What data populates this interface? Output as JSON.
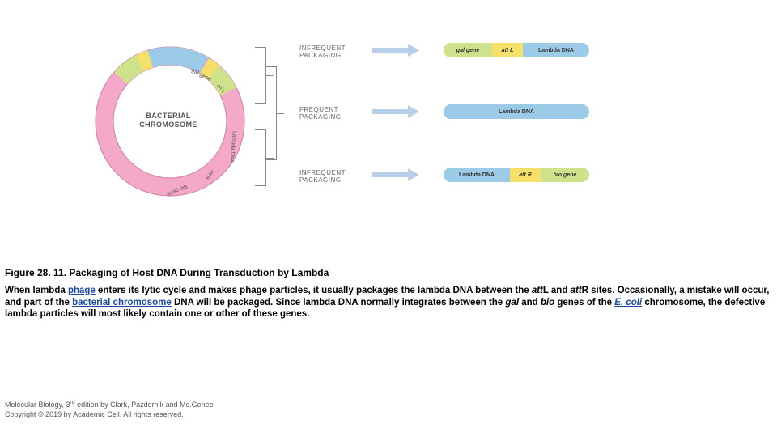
{
  "diagram": {
    "chromosome": {
      "label_line1": "BACTERIAL",
      "label_line2": "CHROMOSOME",
      "ring_outer_r": 92,
      "ring_inner_r": 70,
      "colors": {
        "bacterial": "#f4a9c9",
        "gal": "#cde28a",
        "att": "#f5e06a",
        "lambda": "#9bcbe6",
        "bio": "#cde28a",
        "outline": "#d389a8"
      },
      "arc_labels": {
        "gal": "gal gene",
        "attL": "att L",
        "lambda": "Lambda DNA",
        "attR": "att R",
        "bio": "bio gene"
      }
    },
    "packaging_labels": {
      "top": "INFREQUENT\nPACKAGING",
      "mid": "FREQUENT\nPACKAGING",
      "bot": "INFREQUENT\nPACKAGING"
    },
    "arrow_color": "#b7cfe8",
    "bars": {
      "top": [
        {
          "label": "gal gene",
          "w": 60,
          "color": "#cde28a",
          "ital": true
        },
        {
          "label": "att L",
          "w": 38,
          "color": "#f5e06a",
          "ital": true
        },
        {
          "label": "Lambda DNA",
          "w": 82,
          "color": "#9bcbe6",
          "ital": false
        }
      ],
      "mid": [
        {
          "label": "Lambda DNA",
          "w": 180,
          "color": "#9bcbe6",
          "ital": false
        }
      ],
      "bot": [
        {
          "label": "Lambda DNA",
          "w": 82,
          "color": "#9bcbe6",
          "ital": false
        },
        {
          "label": "att R",
          "w": 38,
          "color": "#f5e06a",
          "ital": true
        },
        {
          "label": "bio gene",
          "w": 60,
          "color": "#cde28a",
          "ital": true
        }
      ]
    }
  },
  "caption": {
    "title": "Figure 28. 11. Packaging of Host DNA During Transduction by Lambda",
    "body_parts": [
      {
        "t": "When lambda "
      },
      {
        "t": "phage",
        "link": true
      },
      {
        "t": " enters its lytic cycle and makes phage particles, it usually packages the lambda DNA between the "
      },
      {
        "t": "att",
        "ital": true
      },
      {
        "t": "L and "
      },
      {
        "t": "att",
        "ital": true
      },
      {
        "t": "R sites. Occasionally, a mistake will occur, and part of the "
      },
      {
        "t": "bacterial chromosome",
        "link": true
      },
      {
        "t": " DNA will be packaged. Since lambda DNA normally integrates between the "
      },
      {
        "t": "gal",
        "ital": true
      },
      {
        "t": " and "
      },
      {
        "t": "bio",
        "ital": true
      },
      {
        "t": " genes of the "
      },
      {
        "t": "E. coli",
        "link": true,
        "ital": true
      },
      {
        "t": " chromosome, the defective lambda particles will most likely contain one or other of these genes."
      }
    ]
  },
  "credit": {
    "line1_pre": "Molecular Biology, 3",
    "line1_sup": "rd",
    "line1_post": " edition by Clark, Pazdernik and  Mc.Gehee",
    "line2": "Copyright © 2019 by Academic Cell. All rights reserved."
  }
}
